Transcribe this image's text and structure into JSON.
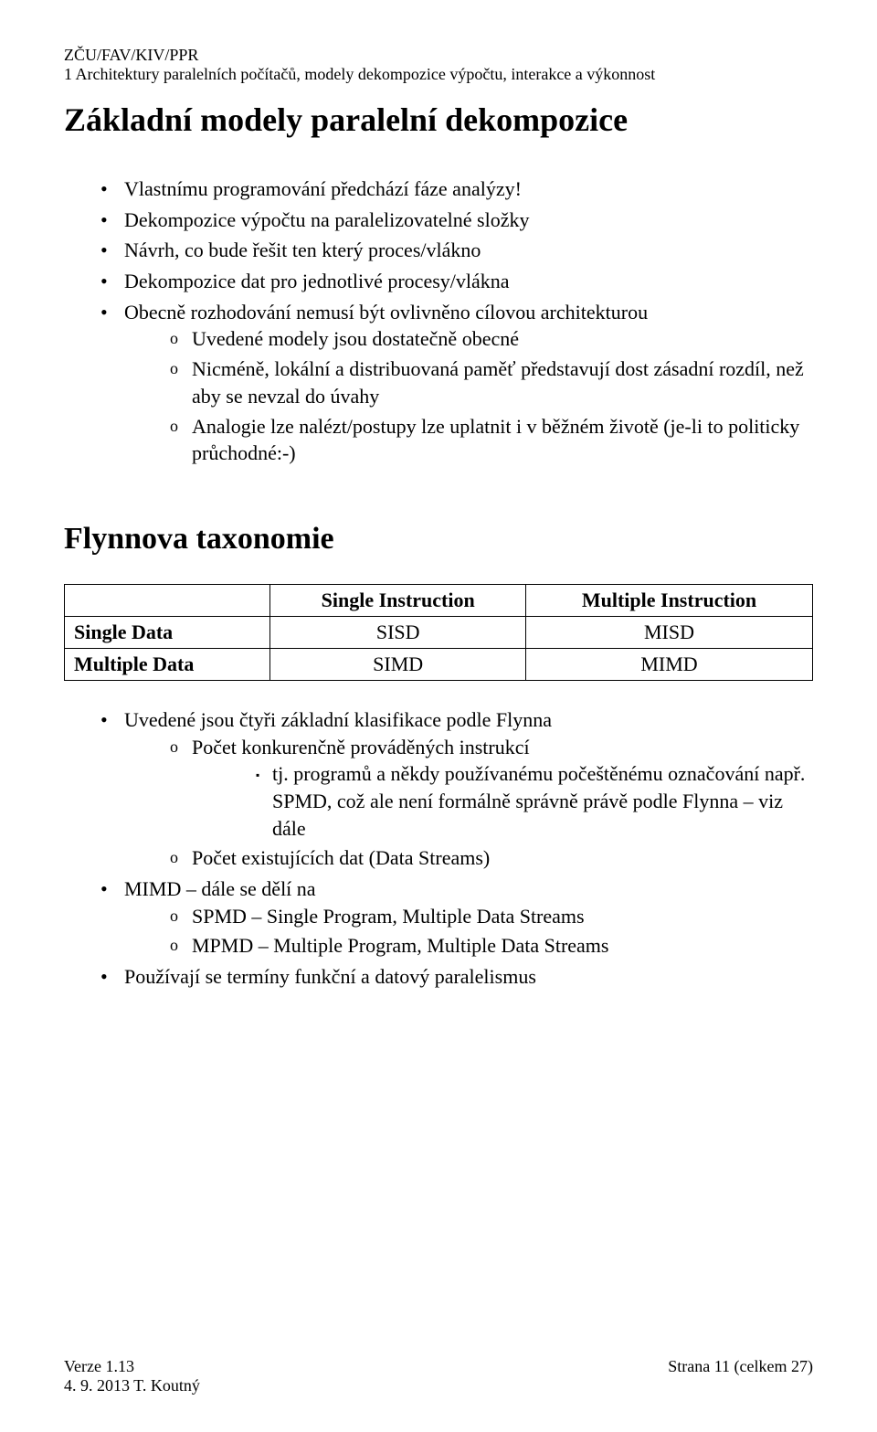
{
  "header": {
    "line1": "ZČU/FAV/KIV/PPR",
    "line2": "1 Architektury paralelních počítačů, modely dekompozice výpočtu, interakce a výkonnost"
  },
  "title1": "Základní modely paralelní dekompozice",
  "list1": {
    "i0": "Vlastnímu programování předchází fáze analýzy!",
    "i1": "Dekompozice výpočtu na paralelizovatelné složky",
    "i2": "Návrh, co bude řešit ten který proces/vlákno",
    "i3": "Dekompozice dat pro jednotlivé procesy/vlákna",
    "i4": "Obecně rozhodování nemusí být ovlivněno cílovou architekturou",
    "sub4": {
      "s0": "Uvedené modely jsou dostatečně obecné",
      "s1": "Nicméně, lokální a distribuovaná paměť představují dost zásadní rozdíl, než aby se nevzal do úvahy",
      "s2": "Analogie lze nalézt/postupy lze uplatnit i v běžném životě (je-li to politicky průchodné:-)"
    }
  },
  "title2": "Flynnova taxonomie",
  "table": {
    "col1": "Single Instruction",
    "col2": "Multiple Instruction",
    "row1": "Single Data",
    "row2": "Multiple Data",
    "c11": "SISD",
    "c12": "MISD",
    "c21": "SIMD",
    "c22": "MIMD"
  },
  "list2": {
    "i0": "Uvedené jsou čtyři základní klasifikace podle Flynna",
    "sub0": {
      "s0": "Počet konkurenčně prováděných instrukcí",
      "ss0": "tj. programů a někdy používanému počeštěnému označování např. SPMD, což ale není formálně správně právě podle Flynna – viz dále",
      "s1": "Počet existujících dat (Data Streams)"
    },
    "i1": "MIMD – dále se dělí na",
    "sub1": {
      "s0": "SPMD – Single Program, Multiple Data Streams",
      "s1": "MPMD – Multiple Program, Multiple Data Streams"
    },
    "i2": "Používají se termíny funkční a datový paralelismus"
  },
  "footer": {
    "version": "Verze 1.13",
    "date": "4. 9. 2013 T. Koutný",
    "page": "Strana 11 (celkem 27)"
  }
}
